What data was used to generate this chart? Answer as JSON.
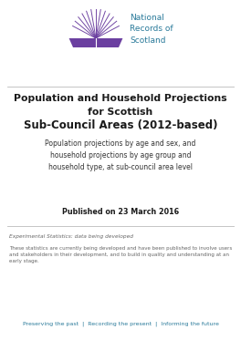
{
  "bg_color": "#ffffff",
  "title_line1": "Population and Household Projections",
  "title_line2": "for Scottish",
  "title_line3": "Sub-Council Areas (2012-based)",
  "subtitle": "Population projections by age and sex, and\nhousehold projections by age group and\nhousehold type, at sub-council area level",
  "published": "Published on 23 March 2016",
  "experimental_label": "Experimental Statistics: data being developed",
  "experimental_body": "These statistics are currently being developed and have been published to involve users\nand stakeholders in their development, and to build in quality and understanding at an\nearly stage.",
  "footer": "Preserving the past  |  Recording the present  |  Informing the future",
  "title_color": "#1a1a1a",
  "subtitle_color": "#333333",
  "published_color": "#1a1a1a",
  "small_text_color": "#666666",
  "footer_color": "#2a7a9a",
  "separator_color": "#bbbbbb",
  "nrs_text_color": "#2a7a9a",
  "logo_purple": "#6b3fa0",
  "logo_teal": "#2a7a9a"
}
